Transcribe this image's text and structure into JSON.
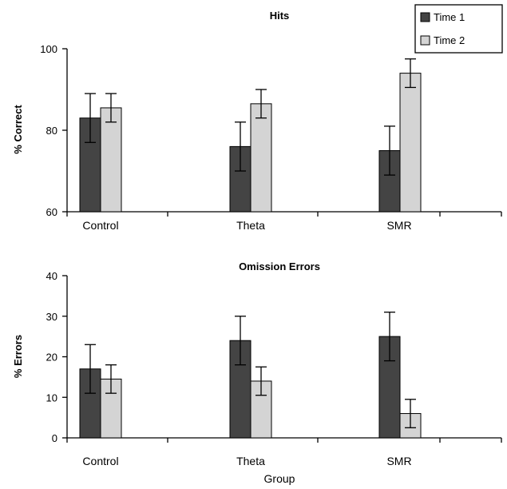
{
  "legend": [
    "Time 1",
    "Time 2"
  ],
  "colors": {
    "time1": "#444444",
    "time2": "#d4d4d4"
  },
  "chart_data": [
    {
      "type": "bar",
      "title": "Hits",
      "ylabel": "% Correct",
      "xlabel": "",
      "categories": [
        "Control",
        "Theta",
        "SMR"
      ],
      "ylim": [
        60,
        100
      ],
      "yticks": [
        60,
        80,
        100
      ],
      "series": [
        {
          "name": "Time 1",
          "values": [
            83,
            76,
            75
          ],
          "errors": [
            6,
            6,
            6
          ]
        },
        {
          "name": "Time 2",
          "values": [
            85.5,
            86.5,
            94
          ],
          "errors": [
            3.5,
            3.5,
            3.5
          ]
        }
      ],
      "legend_position": "top-right"
    },
    {
      "type": "bar",
      "title": "Omission Errors",
      "ylabel": "% Errors",
      "xlabel": "Group",
      "categories": [
        "Control",
        "Theta",
        "SMR"
      ],
      "ylim": [
        0,
        40
      ],
      "yticks": [
        0,
        10,
        20,
        30,
        40
      ],
      "series": [
        {
          "name": "Time 1",
          "values": [
            17,
            24,
            25
          ],
          "errors": [
            6,
            6,
            6
          ]
        },
        {
          "name": "Time 2",
          "values": [
            14.5,
            14,
            6
          ],
          "errors": [
            3.5,
            3.5,
            3.5
          ]
        }
      ]
    }
  ]
}
